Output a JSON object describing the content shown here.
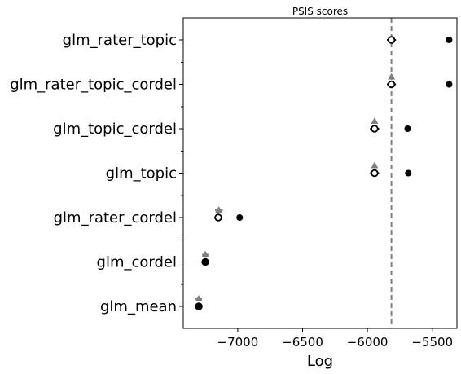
{
  "chart_data": {
    "type": "scatter",
    "title": "PSIS scores",
    "xlabel": "Log",
    "ylabel": "",
    "xlim": [
      -7420,
      -5310
    ],
    "xticks": [
      -7000,
      -6500,
      -6000,
      -5500
    ],
    "xtick_labels": [
      "−7000",
      "−6500",
      "−6000",
      "−5500"
    ],
    "reference_line": -5815,
    "colors": {
      "in_sample": "#000000",
      "loo": "#000000",
      "difference": "#808080",
      "reference": "#808080"
    },
    "models": [
      {
        "label": "glm_rater_topic",
        "in_sample": -5370,
        "loo": -5815,
        "loo_se": 35,
        "diff": null,
        "diff_se": null
      },
      {
        "label": "glm_rater_topic_cordel",
        "in_sample": -5370,
        "loo": -5815,
        "loo_se": 35,
        "diff": -5815,
        "diff_se": 10
      },
      {
        "label": "glm_topic_cordel",
        "in_sample": -5690,
        "loo": -5945,
        "loo_se": 35,
        "diff": -5945,
        "diff_se": 12
      },
      {
        "label": "glm_topic",
        "in_sample": -5685,
        "loo": -5945,
        "loo_se": 35,
        "diff": -5945,
        "diff_se": 12
      },
      {
        "label": "glm_rater_cordel",
        "in_sample": -6985,
        "loo": -7150,
        "loo_se": 30,
        "diff": -7145,
        "diff_se": 30
      },
      {
        "label": "glm_cordel",
        "in_sample": -7250,
        "loo": -7250,
        "loo_se": 20,
        "diff": -7250,
        "diff_se": 25
      },
      {
        "label": "glm_mean",
        "in_sample": -7300,
        "loo": -7300,
        "loo_se": 20,
        "diff": -7300,
        "diff_se": 25
      }
    ]
  }
}
